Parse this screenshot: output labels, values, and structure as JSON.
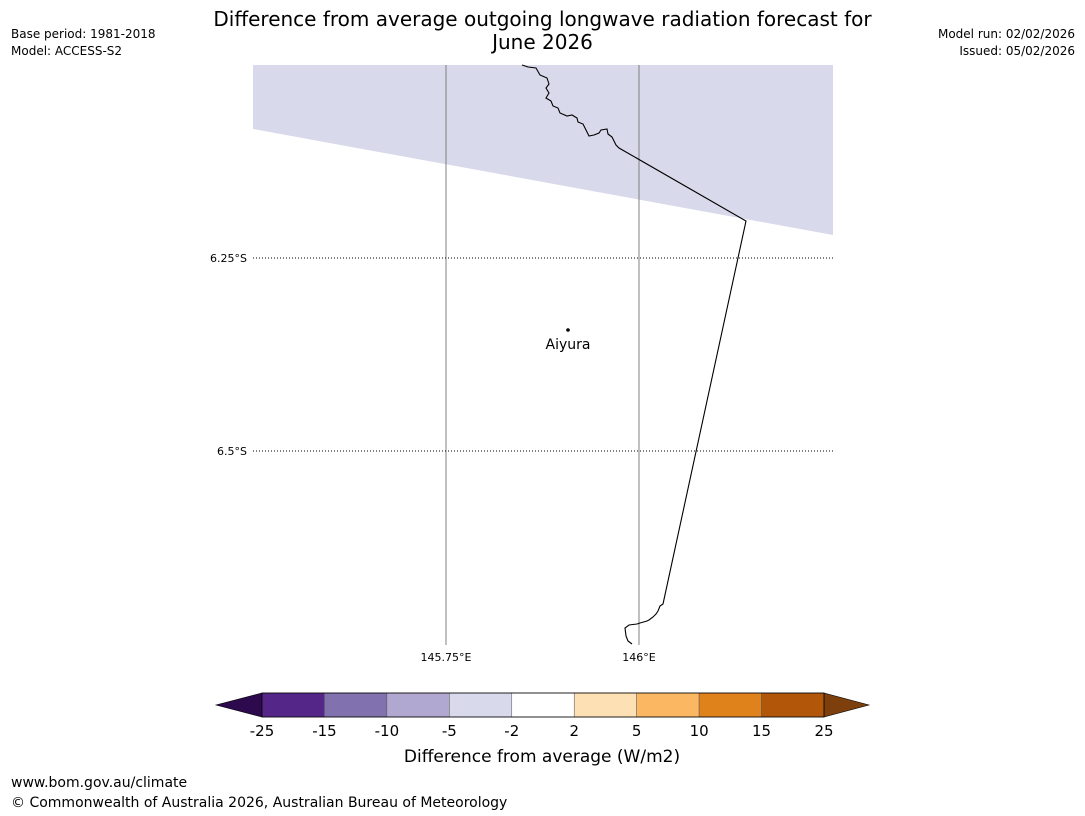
{
  "header": {
    "title_line1": "Difference from average outgoing longwave radiation forecast for",
    "title_line2": "June 2026",
    "base_period": "Base period: 1981-2018",
    "model": "Model: ACCESS-S2",
    "model_run": "Model run: 02/02/2026",
    "issued": "Issued: 05/02/2026"
  },
  "map": {
    "lat_labels": [
      "6.25°S",
      "6.5°S"
    ],
    "lon_labels": [
      "145.75°E",
      "146°E"
    ],
    "place": {
      "name": "Aiyura",
      "lat": -6.35,
      "lon": 145.9
    },
    "shaded_category": "-5 to -2",
    "shaded_color": "#d8d9ea"
  },
  "colorbar": {
    "label": "Difference from average (W/m2)",
    "ticks": [
      "-25",
      "-15",
      "-10",
      "-5",
      "-2",
      "2",
      "5",
      "10",
      "15",
      "25"
    ],
    "colors": [
      "#532688",
      "#8171ae",
      "#b1a8d1",
      "#d8d9ea",
      "#ffffff",
      "#fde1b4",
      "#fbb762",
      "#e0821b",
      "#b2570a"
    ],
    "under_color": "#2d0a4d",
    "over_color": "#7d3f0c"
  },
  "footer": {
    "url": "www.bom.gov.au/climate",
    "copyright": "© Commonwealth of Australia 2026, Australian Bureau of Meteorology"
  }
}
